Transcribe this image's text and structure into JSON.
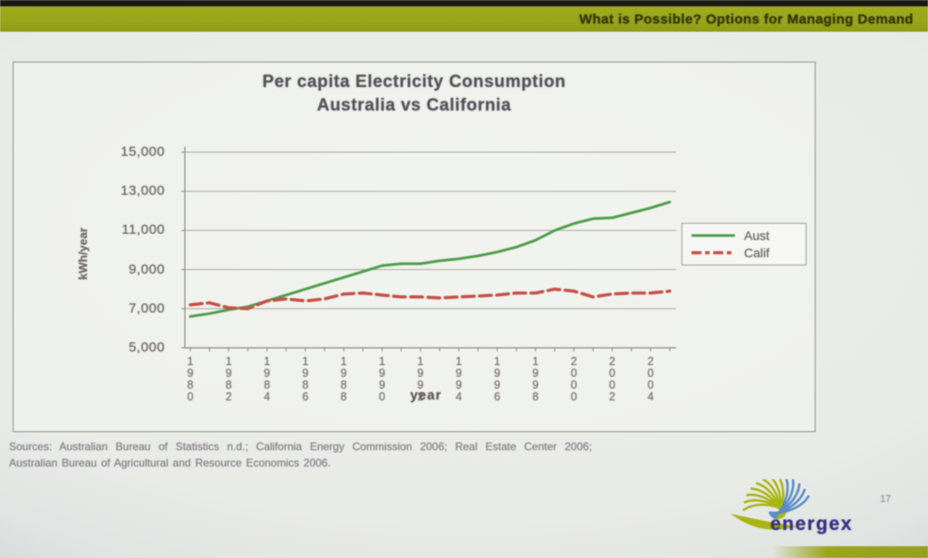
{
  "header": {
    "title": "What is Possible?  Options for Managing Demand"
  },
  "chart_data": {
    "type": "line",
    "title": "Per capita Electricity Consumption",
    "subtitle": "Australia vs California",
    "xlabel": "year",
    "ylabel": "kWh/year",
    "ylim": [
      5000,
      15000
    ],
    "ytick_step": 2000,
    "ytick_labels": [
      "5,000",
      "7,000",
      "9,000",
      "11,000",
      "13,000",
      "15,000"
    ],
    "x": [
      1980,
      1981,
      1982,
      1983,
      1984,
      1985,
      1986,
      1987,
      1988,
      1989,
      1990,
      1991,
      1992,
      1993,
      1994,
      1995,
      1996,
      1997,
      1998,
      1999,
      2000,
      2001,
      2002,
      2003,
      2004,
      2005
    ],
    "xtick_labels": [
      "1980",
      "1982",
      "1984",
      "1986",
      "1988",
      "1990",
      "1992",
      "1994",
      "1996",
      "1998",
      "2000",
      "2002",
      "2004"
    ],
    "xtick_step": 2,
    "grid": true,
    "legend_position": "right",
    "series": [
      {
        "name": "Aust",
        "color": "#4f9e4c",
        "style": "solid",
        "width": 3,
        "values": [
          6600,
          6750,
          6950,
          7100,
          7400,
          7700,
          8000,
          8300,
          8600,
          8900,
          9200,
          9300,
          9300,
          9450,
          9550,
          9700,
          9900,
          10150,
          10500,
          11000,
          11350,
          11600,
          11650,
          11900,
          12150,
          12450
        ]
      },
      {
        "name": "Calif",
        "color": "#c65147",
        "style": "dashed",
        "width": 3.5,
        "values": [
          7200,
          7300,
          7050,
          7000,
          7400,
          7500,
          7400,
          7500,
          7750,
          7800,
          7700,
          7600,
          7600,
          7550,
          7600,
          7650,
          7700,
          7800,
          7800,
          8000,
          7900,
          7600,
          7750,
          7800,
          7800,
          7900
        ]
      }
    ]
  },
  "sources": {
    "line1": "Sources:  Australian Bureau of Statistics n.d.;  California Energy Commission 2006;  Real Estate Center 2006;",
    "line2": "Australian Bureau of Agricultural and Resource Economics 2006."
  },
  "footer": {
    "logo_text": "energex",
    "page_number": "17"
  },
  "colors": {
    "header_bar": "#99a519",
    "aust_line": "#4f9e4c",
    "calif_line": "#c65147",
    "logo_green": "#a9b513",
    "logo_blue": "#5b8cc8",
    "logo_text": "#3a3080",
    "gridline": "#aaa49f"
  }
}
